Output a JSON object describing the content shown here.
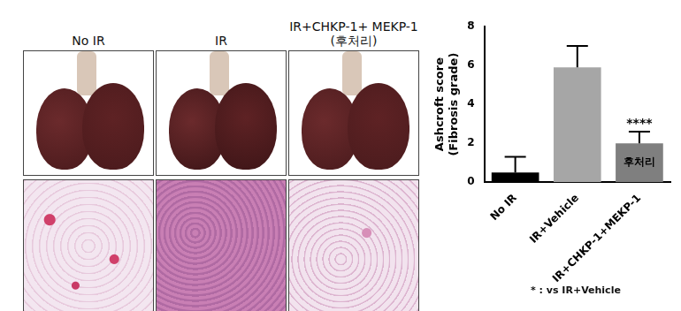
{
  "images": {
    "labels": [
      "No IR",
      "IR",
      "IR+CHKP-1+ MEKP-1 (후처리)"
    ]
  },
  "chart_data": {
    "type": "bar",
    "y_label": "Ashcroft score (Fibrosis grade)",
    "categories": [
      "No IR",
      "IR+Vehicle",
      "IR+CHKP-1+MEKP-1"
    ],
    "values": [
      0.5,
      5.9,
      2.0
    ],
    "errors": [
      0.8,
      1.1,
      0.6
    ],
    "colors": [
      "#000000",
      "#a6a6a6",
      "#7f7f7f"
    ],
    "ylim": [
      0,
      8
    ],
    "yticks": [
      0,
      2,
      4,
      6,
      8
    ],
    "grid": false,
    "annotations": [
      {
        "text": "****",
        "category": "IR+CHKP-1+MEKP-1",
        "position": "above"
      },
      {
        "text": "후처리",
        "category": "IR+CHKP-1+MEKP-1",
        "position": "inside"
      }
    ],
    "note": "* : vs IR+Vehicle"
  }
}
